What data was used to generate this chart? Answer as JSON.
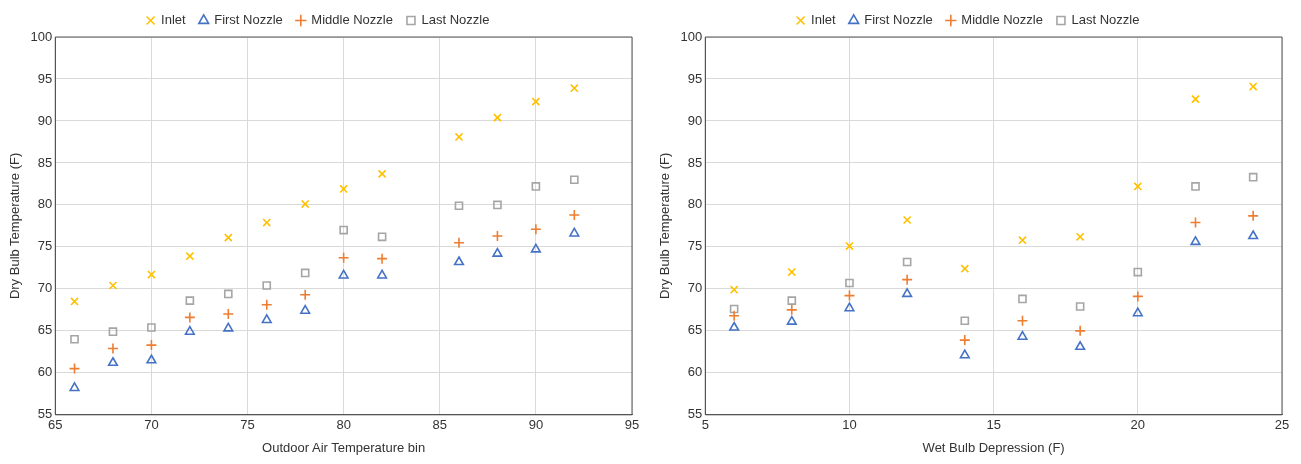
{
  "chart_data": [
    {
      "type": "scatter",
      "xlabel": "Outdoor Air Temperature bin",
      "ylabel": "Dry Bulb Temperature (F)",
      "x": [
        66,
        68,
        70,
        72,
        74,
        76,
        78,
        80,
        82,
        86,
        88,
        90,
        92
      ],
      "xlim": [
        65,
        95
      ],
      "xticks": [
        65,
        70,
        75,
        80,
        85,
        90,
        95
      ],
      "ylim": [
        55,
        100
      ],
      "yticks": [
        55,
        60,
        65,
        70,
        75,
        80,
        85,
        90,
        95,
        100
      ],
      "grid": true,
      "legend": "top",
      "series": [
        {
          "name": "Inlet",
          "color": "#ffc000",
          "marker": "cross",
          "values": [
            68.5,
            70.4,
            71.7,
            73.9,
            76.1,
            77.9,
            80.1,
            81.9,
            83.7,
            88.1,
            90.4,
            92.3,
            93.9
          ]
        },
        {
          "name": "First Nozzle",
          "color": "#4472c4",
          "marker": "triangle",
          "values": [
            58.2,
            61.2,
            61.5,
            64.9,
            65.3,
            66.3,
            67.4,
            71.6,
            71.6,
            73.2,
            74.2,
            74.7,
            76.6
          ]
        },
        {
          "name": "Middle Nozzle",
          "color": "#ed7d31",
          "marker": "plus",
          "values": [
            60.5,
            62.9,
            63.3,
            66.6,
            67.0,
            68.1,
            69.3,
            73.7,
            73.6,
            75.5,
            76.3,
            77.1,
            78.8
          ]
        },
        {
          "name": "Last Nozzle",
          "color": "#a5a5a5",
          "marker": "square",
          "values": [
            64.0,
            64.9,
            65.4,
            68.6,
            69.4,
            70.4,
            71.9,
            77.0,
            76.2,
            79.9,
            80.0,
            82.2,
            83.0
          ]
        }
      ]
    },
    {
      "type": "scatter",
      "xlabel": "Wet Bulb Depression (F)",
      "ylabel": "Dry Bulb Temperature (F)",
      "x": [
        6,
        8,
        10,
        12,
        14,
        16,
        18,
        20,
        22,
        24
      ],
      "xlim": [
        5,
        25
      ],
      "xticks": [
        5,
        10,
        15,
        20,
        25
      ],
      "ylim": [
        55,
        100
      ],
      "yticks": [
        55,
        60,
        65,
        70,
        75,
        80,
        85,
        90,
        95,
        100
      ],
      "grid": true,
      "legend": "top",
      "series": [
        {
          "name": "Inlet",
          "color": "#ffc000",
          "marker": "cross",
          "values": [
            69.9,
            72.0,
            75.1,
            78.2,
            72.4,
            75.8,
            76.2,
            82.2,
            92.6,
            94.1
          ]
        },
        {
          "name": "First Nozzle",
          "color": "#4472c4",
          "marker": "triangle",
          "values": [
            65.4,
            66.1,
            67.7,
            69.4,
            62.1,
            64.3,
            63.1,
            67.1,
            75.6,
            76.3
          ]
        },
        {
          "name": "Middle Nozzle",
          "color": "#ed7d31",
          "marker": "plus",
          "values": [
            66.8,
            67.5,
            69.2,
            71.1,
            63.9,
            66.2,
            65.0,
            69.1,
            77.9,
            78.7
          ]
        },
        {
          "name": "Last Nozzle",
          "color": "#a5a5a5",
          "marker": "square",
          "values": [
            67.6,
            68.6,
            70.7,
            73.2,
            66.2,
            68.8,
            67.9,
            72.0,
            82.2,
            83.3
          ]
        }
      ]
    }
  ]
}
